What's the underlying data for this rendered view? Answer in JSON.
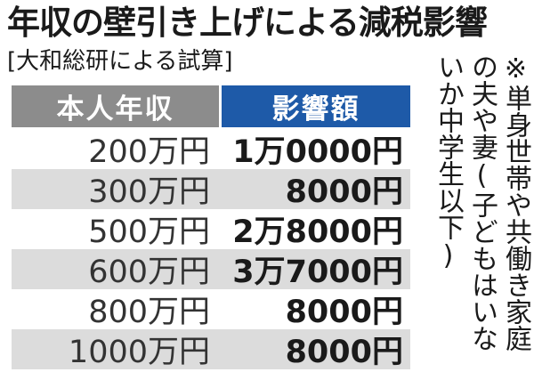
{
  "title": "年収の壁引き上げによる減税影響",
  "source": "[大和総研による試算]",
  "table": {
    "headers": {
      "income": "本人年収",
      "impact": "影響額"
    },
    "rows": [
      {
        "income": "200万円",
        "impact": "1万0000円"
      },
      {
        "income": "300万円",
        "impact": "8000円"
      },
      {
        "income": "500万円",
        "impact": "2万8000円"
      },
      {
        "income": "600万円",
        "impact": "3万7000円"
      },
      {
        "income": "800万円",
        "impact": "8000円"
      },
      {
        "income": "1000万円",
        "impact": "8000円"
      }
    ]
  },
  "note": {
    "lines": [
      "※単身世帯や共働き家庭",
      "の夫や妻(子どもはいな",
      "いか中学生以下)"
    ]
  }
}
